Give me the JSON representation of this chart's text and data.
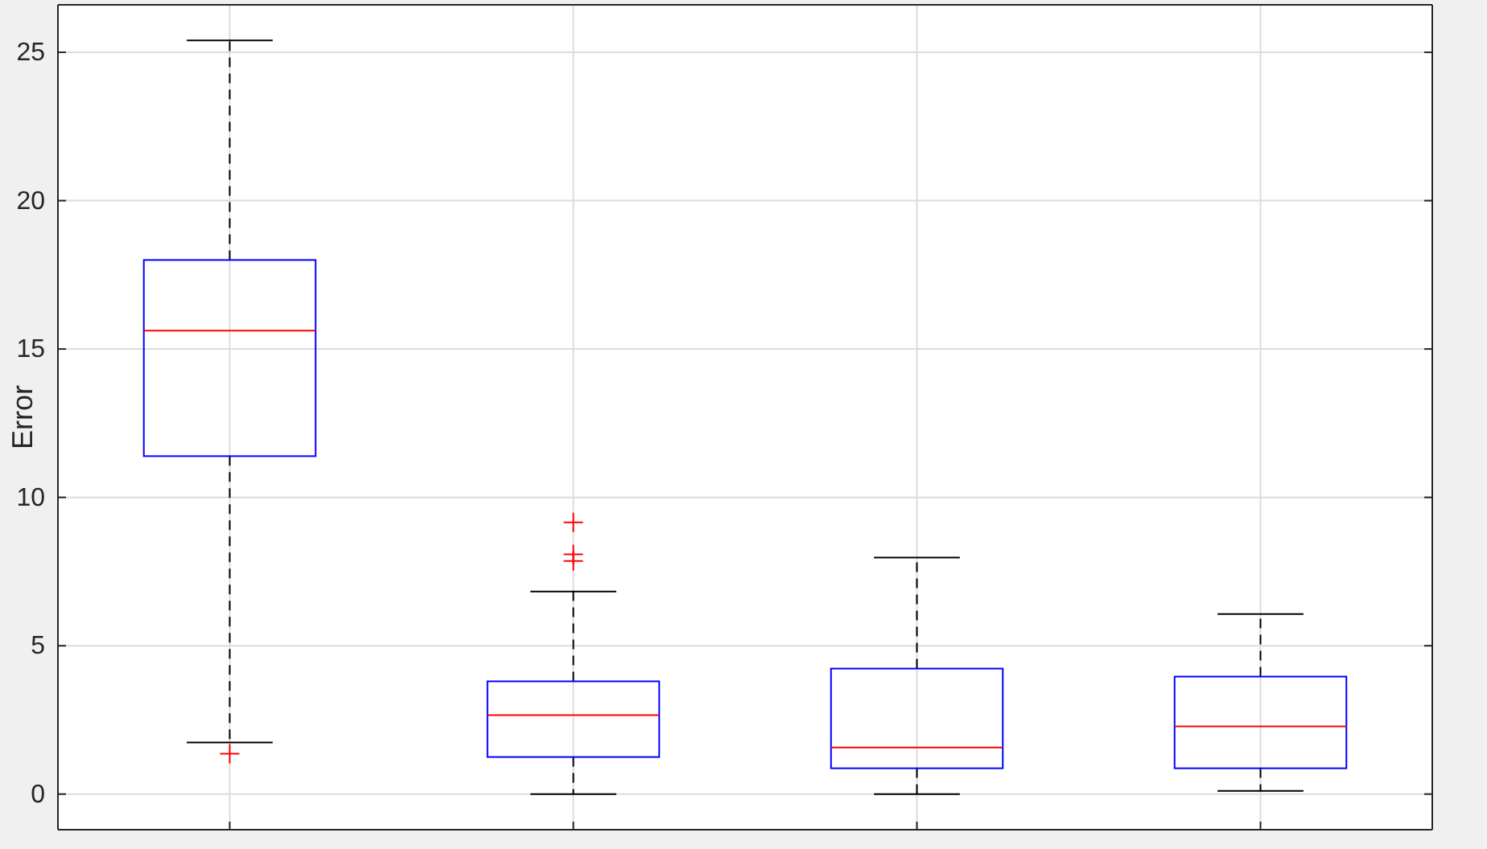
{
  "chart_data": {
    "type": "box",
    "ylabel": "Error",
    "categories": [
      null,
      null,
      null,
      null
    ],
    "boxes": [
      {
        "low": 1.74,
        "q1": 11.39,
        "median": 15.62,
        "q3": 18.0,
        "high": 25.4,
        "outliers": [
          1.36
        ]
      },
      {
        "low": 0,
        "q1": 1.25,
        "median": 2.66,
        "q3": 3.8,
        "high": 6.83,
        "outliers": [
          9.16,
          8.08,
          7.86
        ]
      },
      {
        "low": 0,
        "q1": 0.87,
        "median": 1.57,
        "q3": 4.23,
        "high": 7.97
      },
      {
        "low": 0.11,
        "q1": 0.87,
        "median": 2.28,
        "q3": 3.96,
        "high": 6.07
      }
    ],
    "ylim": [
      -1.2,
      26.6
    ],
    "yticks": [
      0,
      5,
      10,
      15,
      20,
      25
    ],
    "grid": true,
    "color": "#0000ff"
  }
}
